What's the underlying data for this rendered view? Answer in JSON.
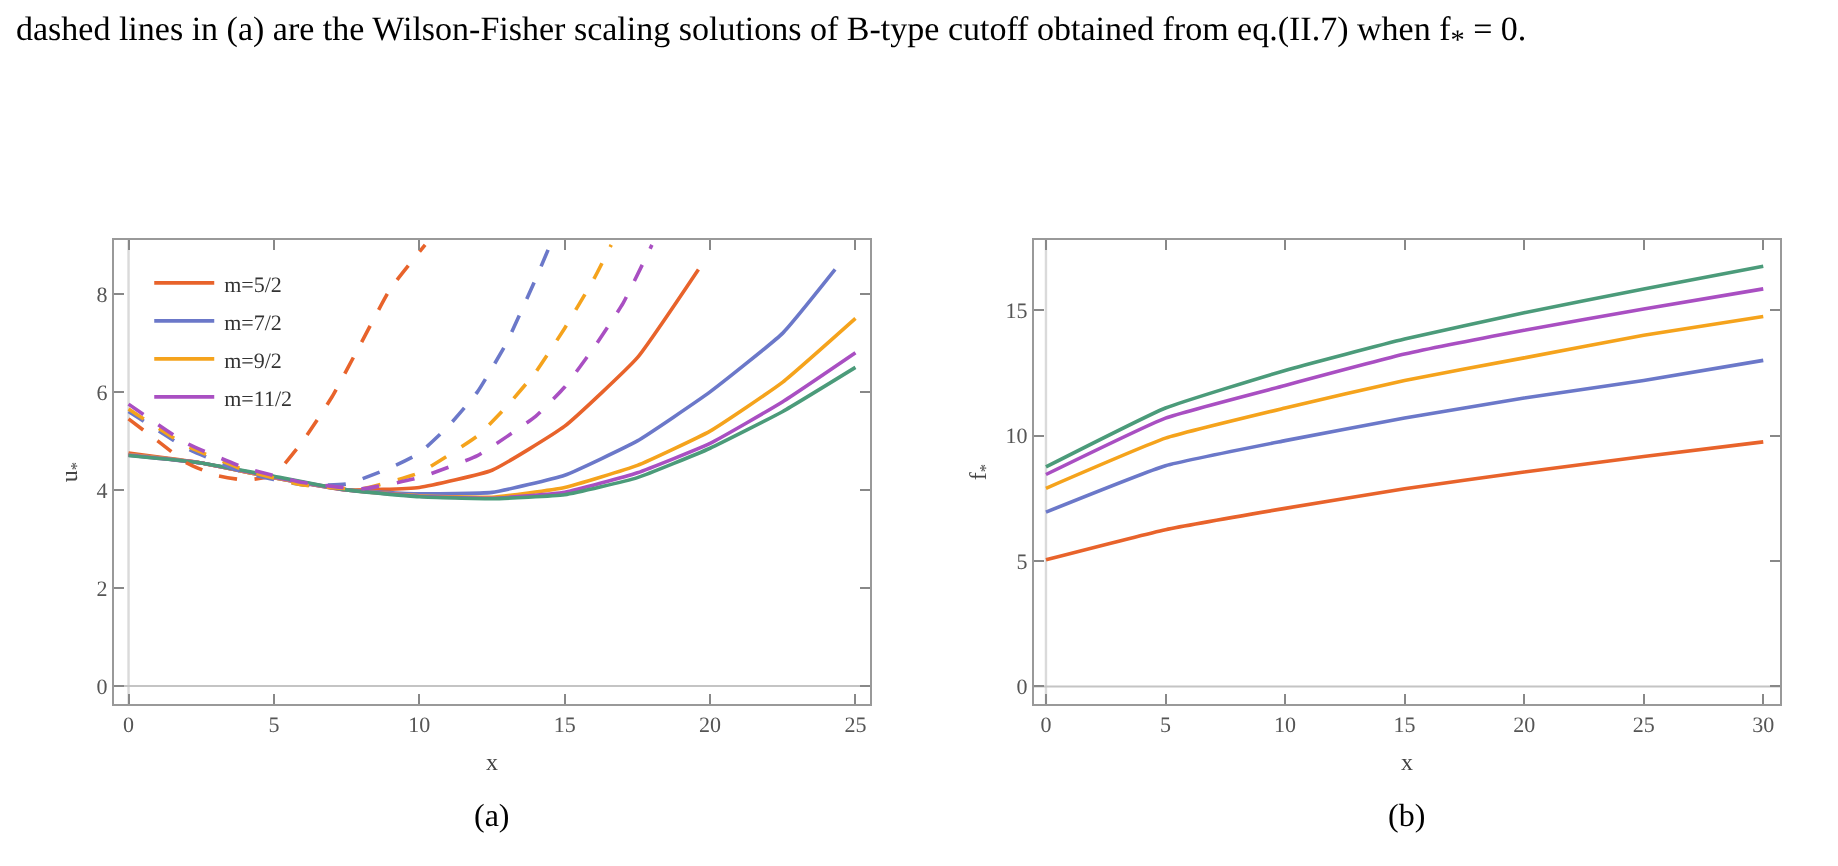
{
  "chart_data": [
    {
      "type": "line",
      "title": "(a)",
      "annotations": [
        "dashed lines in (a) are the Wilson-Fisher scaling solutions of B-type cutoff obtained from eq.(II.7) when f$_{*}$ = 0."
      ],
      "xlabel": "x",
      "ylabel": "u$_{*}$",
      "xlim": [
        -0.5,
        25.5
      ],
      "ylim": [
        -0.37,
        9.1
      ],
      "xticks": [
        0,
        5,
        10,
        15,
        20,
        25
      ],
      "yticks": [
        0,
        2,
        4,
        6,
        8
      ],
      "grid": false,
      "ref_lines": [
        {
          "axis": "x",
          "value": 0,
          "color": "#dadada"
        },
        {
          "axis": "y",
          "value": 0,
          "color": "#c4c4c4"
        }
      ],
      "legend": "top left",
      "line_style": "solid",
      "marker": "none",
      "series": [
        {
          "name": "m=5/2",
          "color": "#e8632b",
          "x": [
            0,
            2.5,
            5,
            7.5,
            10,
            12.5,
            15,
            17.5,
            19.6
          ],
          "values": [
            4.75,
            4.55,
            4.25,
            4.0,
            4.05,
            4.4,
            5.3,
            6.7,
            8.5
          ]
        },
        {
          "name": "m=7/2",
          "color": "#6b78c9",
          "x": [
            0,
            2.5,
            5,
            7.5,
            10,
            12.5,
            15,
            17.5,
            20,
            22.5,
            24.3
          ],
          "values": [
            4.72,
            4.55,
            4.25,
            4.0,
            3.92,
            3.95,
            4.3,
            5.0,
            6.0,
            7.2,
            8.5
          ]
        },
        {
          "name": "m=9/2",
          "color": "#f5a31c",
          "x": [
            0,
            2.5,
            5,
            7.5,
            10,
            12.5,
            15,
            17.5,
            20,
            22.5,
            25
          ],
          "values": [
            4.72,
            4.55,
            4.25,
            4.0,
            3.88,
            3.85,
            4.05,
            4.5,
            5.2,
            6.2,
            7.5
          ]
        },
        {
          "name": "m=11/2",
          "color": "#a94fc2",
          "x": [
            0,
            2.5,
            5,
            7.5,
            10,
            12.5,
            15,
            17.5,
            20,
            22.5,
            25
          ],
          "values": [
            4.71,
            4.55,
            4.26,
            4.0,
            3.87,
            3.83,
            3.95,
            4.35,
            4.95,
            5.8,
            6.8
          ]
        },
        {
          "color": "#4b9b7a",
          "x": [
            0,
            2.5,
            5,
            7.5,
            10,
            12.5,
            15,
            17.5,
            20,
            22.5,
            25
          ],
          "values": [
            4.7,
            4.55,
            4.28,
            4.0,
            3.86,
            3.82,
            3.9,
            4.25,
            4.85,
            5.6,
            6.5
          ]
        },
        {
          "color": "#e8632b",
          "line_style": "dashed",
          "x": [
            0,
            1,
            2,
            3,
            4,
            5,
            6,
            7,
            8,
            9,
            10.2
          ],
          "values": [
            5.45,
            5.0,
            4.55,
            4.3,
            4.2,
            4.3,
            5.0,
            5.9,
            7.0,
            8.1,
            9.0
          ]
        },
        {
          "color": "#6b78c9",
          "line_style": "dashed",
          "x": [
            0,
            2,
            4,
            6,
            7.5,
            9,
            10,
            11,
            12,
            13,
            14,
            14.5
          ],
          "values": [
            5.6,
            4.85,
            4.35,
            4.1,
            4.12,
            4.45,
            4.75,
            5.3,
            6.0,
            7.0,
            8.3,
            9.0
          ]
        },
        {
          "color": "#f5a31c",
          "line_style": "dashed",
          "x": [
            0,
            2,
            4,
            6,
            8,
            10,
            12,
            13,
            14,
            15,
            16,
            16.6
          ],
          "values": [
            5.65,
            4.9,
            4.4,
            4.1,
            4.02,
            4.35,
            5.1,
            5.7,
            6.4,
            7.3,
            8.3,
            9.0
          ]
        },
        {
          "color": "#a94fc2",
          "line_style": "dashed",
          "x": [
            0,
            2,
            4,
            6,
            8,
            10,
            12,
            14,
            15,
            16,
            17,
            18
          ],
          "values": [
            5.75,
            4.95,
            4.45,
            4.15,
            4.02,
            4.25,
            4.7,
            5.5,
            6.1,
            6.9,
            7.8,
            9.0
          ]
        }
      ]
    },
    {
      "type": "line",
      "title": "(b)",
      "xlabel": "x",
      "ylabel": "f$_{*}$",
      "xlim": [
        -0.5,
        30.7
      ],
      "ylim": [
        -0.7,
        17.8
      ],
      "xticks": [
        0,
        5,
        10,
        15,
        20,
        25,
        30
      ],
      "yticks": [
        0,
        5,
        10,
        15
      ],
      "grid": false,
      "ref_lines": [
        {
          "axis": "x",
          "value": 0,
          "color": "#dadada"
        },
        {
          "axis": "y",
          "value": 0,
          "color": "#c4c4c4"
        }
      ],
      "legend": false,
      "line_style": "solid",
      "marker": "none",
      "x": [
        0,
        5,
        10,
        15,
        20,
        25,
        30
      ],
      "series": [
        {
          "color": "#e8632b",
          "values": [
            5.05,
            6.25,
            7.1,
            7.88,
            8.55,
            9.17,
            9.75
          ]
        },
        {
          "color": "#6b78c9",
          "values": [
            6.95,
            8.8,
            9.8,
            10.7,
            11.5,
            12.2,
            13.0
          ]
        },
        {
          "color": "#f5a31c",
          "values": [
            7.9,
            9.9,
            11.1,
            12.2,
            13.1,
            14.0,
            14.75
          ]
        },
        {
          "color": "#a94fc2",
          "values": [
            8.45,
            10.7,
            12.0,
            13.25,
            14.2,
            15.05,
            15.85
          ]
        },
        {
          "color": "#4b9b7a",
          "values": [
            8.75,
            11.1,
            12.6,
            13.85,
            14.9,
            15.85,
            16.75
          ]
        }
      ]
    }
  ]
}
